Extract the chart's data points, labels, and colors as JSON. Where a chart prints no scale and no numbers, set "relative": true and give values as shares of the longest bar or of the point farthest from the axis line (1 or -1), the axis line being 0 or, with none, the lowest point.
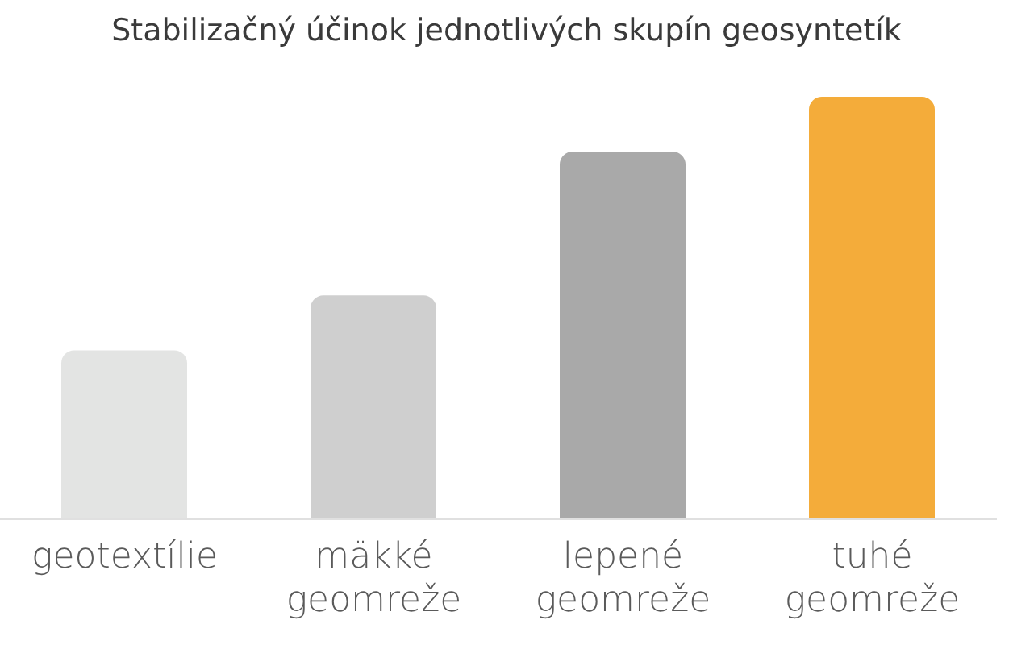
{
  "chart_data": {
    "type": "bar",
    "title": "Stabilizačný účinok jednotlivých skupín geosyntetík",
    "categories": [
      "geotextílie",
      "mäkké geomreže",
      "lepené geomreže",
      "tuhé geomreže"
    ],
    "values": [
      0.4,
      0.53,
      0.87,
      1
    ],
    "colors": [
      "#e3e4e3",
      "#cfcfcf",
      "#a9a9a9",
      "#f4ac3a"
    ],
    "relative": true
  }
}
